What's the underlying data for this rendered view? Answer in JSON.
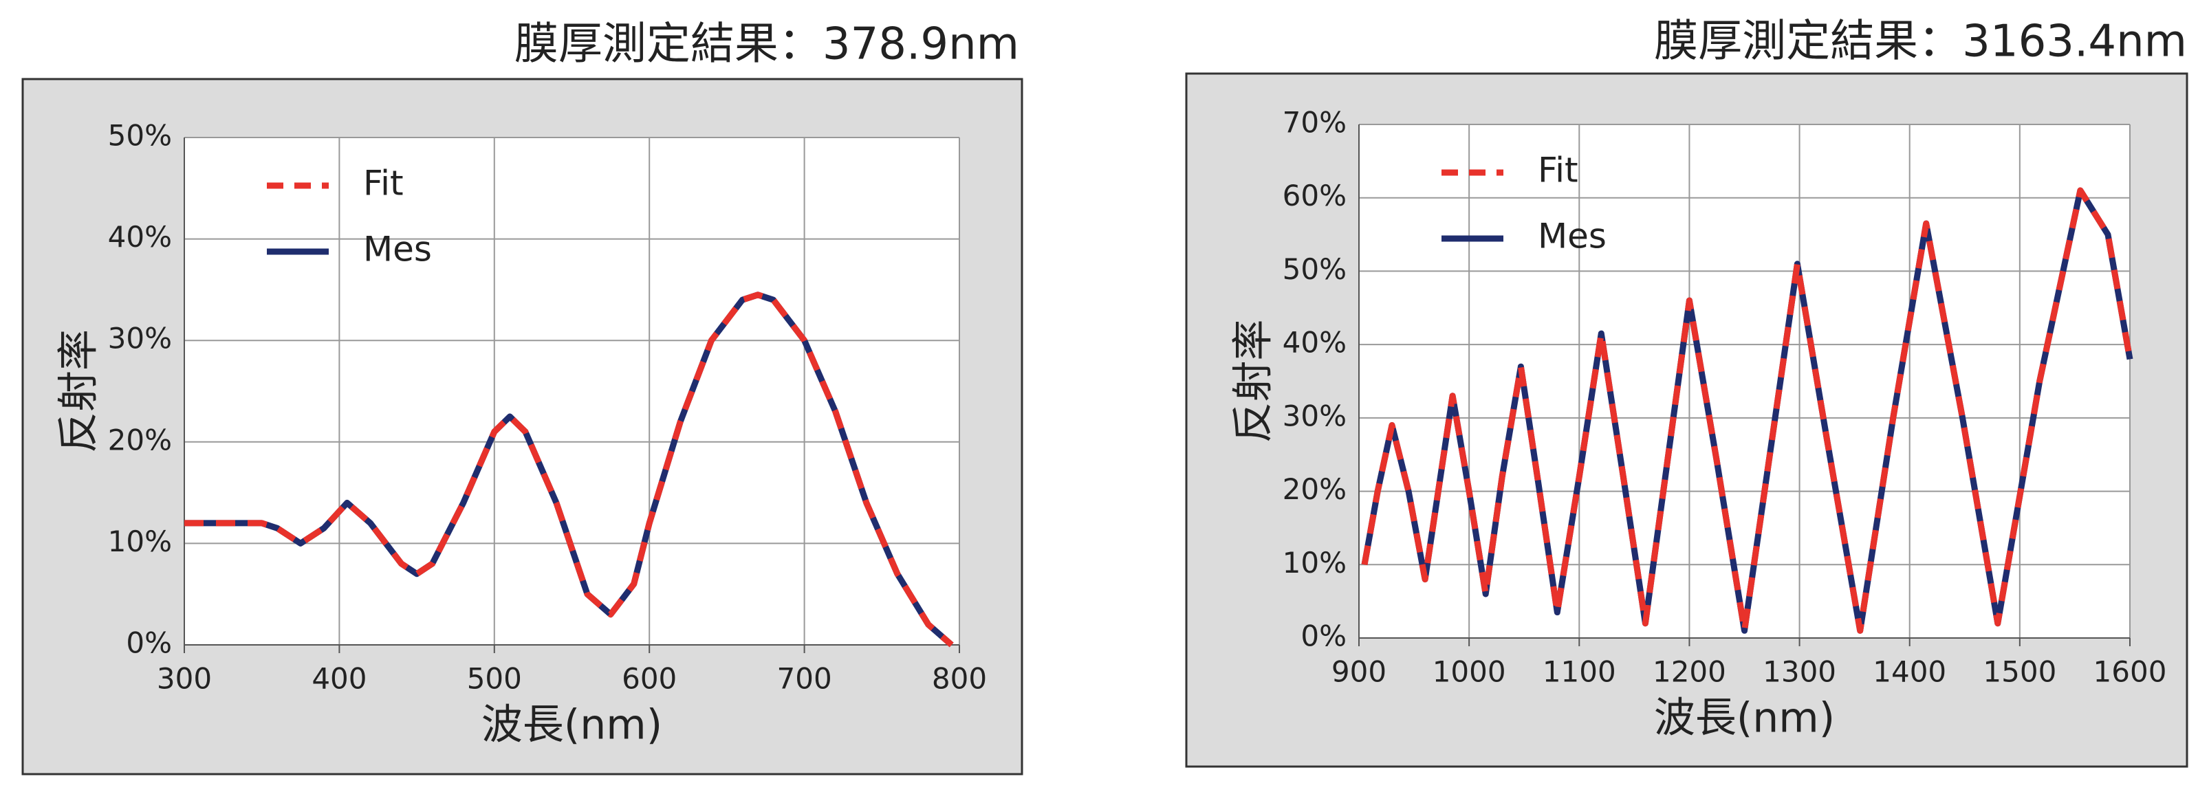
{
  "chart_data": [
    {
      "type": "line",
      "title": "膜厚測定結果：378.9nm",
      "xlabel": "波長(nm)",
      "ylabel": "反射率",
      "x": [
        300,
        320,
        340,
        350,
        360,
        375,
        390,
        405,
        420,
        440,
        450,
        460,
        480,
        500,
        510,
        520,
        540,
        560,
        575,
        590,
        600,
        620,
        640,
        660,
        670,
        680,
        700,
        720,
        740,
        760,
        780,
        795
      ],
      "series": [
        {
          "name": "Fit",
          "color": "#e8322b",
          "linestyle": "dashed",
          "values": [
            12,
            12,
            12,
            12,
            11.5,
            10,
            11.5,
            14,
            12,
            8,
            7,
            8,
            14,
            21,
            22.5,
            21,
            14,
            5,
            3,
            6,
            12,
            22,
            30,
            34,
            34.5,
            34,
            30,
            23,
            14,
            7,
            2,
            0
          ]
        },
        {
          "name": "Mes",
          "color": "#1f2d6e",
          "linestyle": "solid",
          "values": [
            12,
            12,
            12,
            12,
            11.5,
            10,
            11.5,
            14,
            12,
            8,
            7,
            8,
            14,
            21,
            22.5,
            21,
            14,
            5,
            3,
            6,
            12,
            22,
            30,
            34,
            34.5,
            34,
            30,
            23,
            14,
            7,
            2,
            0
          ]
        }
      ],
      "xlim": [
        300,
        800
      ],
      "xticks": [
        300,
        400,
        500,
        600,
        700,
        800
      ],
      "ylim": [
        0,
        50
      ],
      "yticks": [
        {
          "value": 0,
          "label": "0%"
        },
        {
          "value": 10,
          "label": "10%"
        },
        {
          "value": 20,
          "label": "20%"
        },
        {
          "value": 30,
          "label": "30%"
        },
        {
          "value": 40,
          "label": "40%"
        },
        {
          "value": 50,
          "label": "50%"
        }
      ],
      "grid": true,
      "legend": "upper left"
    },
    {
      "type": "line",
      "title": "膜厚測定結果：3163.4nm",
      "xlabel": "波長(nm)",
      "ylabel": "反射率",
      "x": [
        905,
        917,
        930,
        945,
        960,
        972,
        985,
        1000,
        1015,
        1030,
        1047,
        1063,
        1080,
        1100,
        1120,
        1140,
        1160,
        1180,
        1200,
        1225,
        1250,
        1275,
        1298,
        1325,
        1355,
        1385,
        1415,
        1448,
        1480,
        1518,
        1555,
        1580,
        1600
      ],
      "series": [
        {
          "name": "Fit",
          "color": "#e8322b",
          "linestyle": "dashed",
          "values": [
            10,
            20,
            29,
            20,
            8,
            20,
            33,
            20,
            6,
            22,
            37,
            21,
            3.5,
            22,
            41.5,
            22,
            2,
            24,
            46,
            24,
            1,
            27,
            51,
            27,
            1,
            30,
            56.5,
            30,
            2,
            35,
            61,
            55,
            38
          ]
        },
        {
          "name": "Mes",
          "color": "#1f2d6e",
          "linestyle": "solid",
          "values": [
            10,
            20,
            29,
            20,
            8,
            20,
            33,
            20,
            6,
            22,
            37,
            21,
            3.5,
            22,
            41.5,
            22,
            2,
            24,
            46,
            24,
            1,
            27,
            51,
            27,
            1,
            30,
            56.5,
            30,
            2,
            35,
            61,
            55,
            38
          ]
        }
      ],
      "xlim": [
        900,
        1600
      ],
      "xticks": [
        900,
        1000,
        1100,
        1200,
        1300,
        1400,
        1500,
        1600
      ],
      "ylim": [
        0,
        70
      ],
      "yticks": [
        {
          "value": 0,
          "label": "0%"
        },
        {
          "value": 10,
          "label": "10%"
        },
        {
          "value": 20,
          "label": "20%"
        },
        {
          "value": 30,
          "label": "30%"
        },
        {
          "value": 40,
          "label": "40%"
        },
        {
          "value": 50,
          "label": "50%"
        },
        {
          "value": 60,
          "label": "60%"
        },
        {
          "value": 70,
          "label": "70%"
        }
      ],
      "grid": true,
      "legend": "upper left"
    }
  ]
}
